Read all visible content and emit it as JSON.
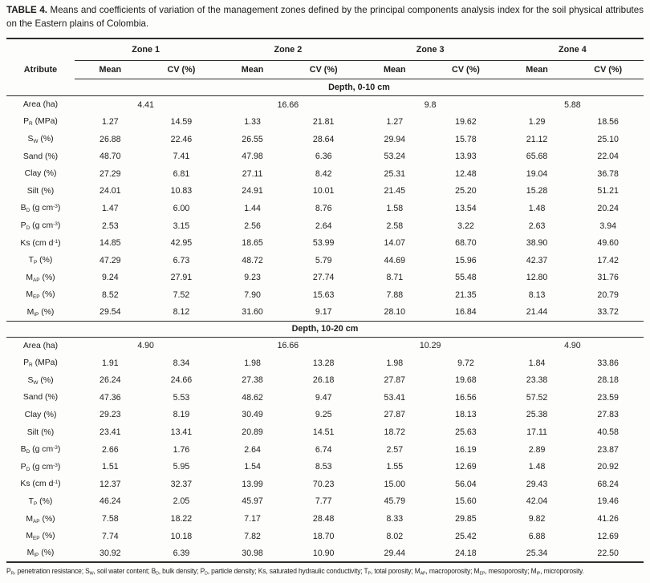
{
  "title": {
    "label": "TABLE 4.",
    "text": "Means and coefficients of variation of the management zones defined by the principal components analysis index for the soil physical attributes on the Eastern plains of Colombia."
  },
  "table": {
    "attribute_header": "Atribute",
    "zones": [
      "Zone 1",
      "Zone 2",
      "Zone 3",
      "Zone 4"
    ],
    "subheaders": [
      "Mean",
      "CV (%)"
    ],
    "sections": [
      {
        "header": "Depth, 0-10 cm",
        "area_row": {
          "label": "Area (ha)",
          "values": [
            "4.41",
            "16.66",
            "9.8",
            "5.88"
          ]
        },
        "rows": [
          {
            "label": "P_{R} (MPa)",
            "values": [
              "1.27",
              "14.59",
              "1.33",
              "21.81",
              "1.27",
              "19.62",
              "1.29",
              "18.56"
            ]
          },
          {
            "label": "S_{W} (%)",
            "values": [
              "26.88",
              "22.46",
              "26.55",
              "28.64",
              "29.94",
              "15.78",
              "21.12",
              "25.10"
            ]
          },
          {
            "label": "Sand (%)",
            "values": [
              "48.70",
              "7.41",
              "47.98",
              "6.36",
              "53.24",
              "13.93",
              "65.68",
              "22.04"
            ]
          },
          {
            "label": "Clay (%)",
            "values": [
              "27.29",
              "6.81",
              "27.11",
              "8.42",
              "25.31",
              "12.48",
              "19.04",
              "36.78"
            ]
          },
          {
            "label": "Silt (%)",
            "values": [
              "24.01",
              "10.83",
              "24.91",
              "10.01",
              "21.45",
              "25.20",
              "15.28",
              "51.21"
            ]
          },
          {
            "label": "B_{D} (g cm^{-3})",
            "values": [
              "1.47",
              "6.00",
              "1.44",
              "8.76",
              "1.58",
              "13.54",
              "1.48",
              "20.24"
            ]
          },
          {
            "label": "P_{D} (g cm^{-3})",
            "values": [
              "2.53",
              "3.15",
              "2.56",
              "2.64",
              "2.58",
              "3.22",
              "2.63",
              "3.94"
            ]
          },
          {
            "label": "Ks (cm d^{-1})",
            "values": [
              "14.85",
              "42.95",
              "18.65",
              "53.99",
              "14.07",
              "68.70",
              "38.90",
              "49.60"
            ]
          },
          {
            "label": "T_{P} (%)",
            "values": [
              "47.29",
              "6.73",
              "48.72",
              "5.79",
              "44.69",
              "15.96",
              "42.37",
              "17.42"
            ]
          },
          {
            "label": "M_{AP} (%)",
            "values": [
              "9.24",
              "27.91",
              "9.23",
              "27.74",
              "8.71",
              "55.48",
              "12.80",
              "31.76"
            ]
          },
          {
            "label": "M_{EP} (%)",
            "values": [
              "8.52",
              "7.52",
              "7.90",
              "15.63",
              "7.88",
              "21.35",
              "8.13",
              "20.79"
            ]
          },
          {
            "label": "M_{IP} (%)",
            "values": [
              "29.54",
              "8.12",
              "31.60",
              "9.17",
              "28.10",
              "16.84",
              "21.44",
              "33.72"
            ]
          }
        ]
      },
      {
        "header": "Depth, 10-20 cm",
        "area_row": {
          "label": "Area (ha)",
          "values": [
            "4.90",
            "16.66",
            "10.29",
            "4.90"
          ]
        },
        "rows": [
          {
            "label": "P_{R} (MPa)",
            "values": [
              "1.91",
              "8.34",
              "1.98",
              "13.28",
              "1.98",
              "9.72",
              "1.84",
              "33.86"
            ]
          },
          {
            "label": "S_{W} (%)",
            "values": [
              "26.24",
              "24.66",
              "27.38",
              "26.18",
              "27.87",
              "19.68",
              "23.38",
              "28.18"
            ]
          },
          {
            "label": "Sand (%)",
            "values": [
              "47.36",
              "5.53",
              "48.62",
              "9.47",
              "53.41",
              "16.56",
              "57.52",
              "23.59"
            ]
          },
          {
            "label": "Clay (%)",
            "values": [
              "29.23",
              "8.19",
              "30.49",
              "9.25",
              "27.87",
              "18.13",
              "25.38",
              "27.83"
            ]
          },
          {
            "label": "Silt (%)",
            "values": [
              "23.41",
              "13.41",
              "20.89",
              "14.51",
              "18.72",
              "25.63",
              "17.11",
              "40.58"
            ]
          },
          {
            "label": "B_{D} (g cm^{-3})",
            "values": [
              "2.66",
              "1.76",
              "2.64",
              "6.74",
              "2.57",
              "16.19",
              "2.89",
              "23.87"
            ]
          },
          {
            "label": "P_{D} (g cm^{-3})",
            "values": [
              "1.51",
              "5.95",
              "1.54",
              "8.53",
              "1.55",
              "12.69",
              "1.48",
              "20.92"
            ]
          },
          {
            "label": "Ks (cm d^{-1})",
            "values": [
              "12.37",
              "32.37",
              "13.99",
              "70.23",
              "15.00",
              "56.04",
              "29.43",
              "68.24"
            ]
          },
          {
            "label": "T_{P} (%)",
            "values": [
              "46.24",
              "2.05",
              "45.97",
              "7.77",
              "45.79",
              "15.60",
              "42.04",
              "19.46"
            ]
          },
          {
            "label": "M_{AP} (%)",
            "values": [
              "7.58",
              "18.22",
              "7.17",
              "28.48",
              "8.33",
              "29.85",
              "9.82",
              "41.26"
            ]
          },
          {
            "label": "M_{EP} (%)",
            "values": [
              "7.74",
              "10.18",
              "7.82",
              "18.70",
              "8.02",
              "25.42",
              "6.88",
              "12.69"
            ]
          },
          {
            "label": "M_{IP} (%)",
            "values": [
              "30.92",
              "6.39",
              "30.98",
              "10.90",
              "29.44",
              "24.18",
              "25.34",
              "22.50"
            ]
          }
        ]
      }
    ]
  },
  "footnote": "P_{R}, penetration resistance; S_{W}, soil water content; B_{D}, bulk density; P_{D}, particle density; Ks, saturated hydraulic conductivity; T_{P}, total porosity; M_{AP}, macroporosity; M_{EP}, mesoporosity; M_{IP}, microporosity."
}
